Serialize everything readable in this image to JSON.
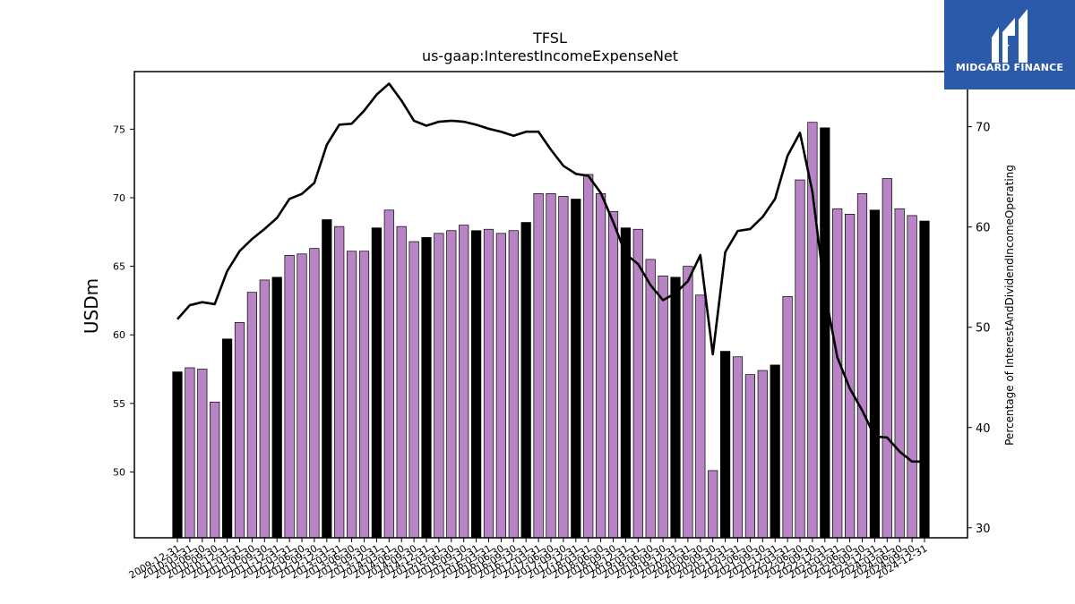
{
  "chart_data": {
    "type": "bar",
    "title": "TFSL",
    "subtitle": "us-gaap:InterestIncomeExpenseNet",
    "ylabel": "USDm",
    "y2label": "Percentage of InterestAndDividendIncomeOperating",
    "ylim": [
      45.2,
      79.2
    ],
    "y2lim": [
      29,
      75.5
    ],
    "yticks": [
      50,
      55,
      60,
      65,
      70,
      75
    ],
    "y2ticks": [
      30,
      40,
      50,
      60,
      70
    ],
    "x": [
      "2009-12-31",
      "2010-03-31",
      "2010-06-30",
      "2010-09-30",
      "2010-12-31",
      "2011-03-31",
      "2011-06-30",
      "2011-09-30",
      "2011-12-31",
      "2012-03-31",
      "2012-06-30",
      "2012-09-30",
      "2012-12-31",
      "2013-03-31",
      "2013-06-30",
      "2013-09-30",
      "2013-12-31",
      "2014-03-31",
      "2014-06-30",
      "2014-09-30",
      "2014-12-31",
      "2015-03-31",
      "2015-06-30",
      "2015-09-30",
      "2015-12-31",
      "2016-03-31",
      "2016-06-30",
      "2016-09-30",
      "2016-12-31",
      "2017-03-31",
      "2017-06-30",
      "2017-09-30",
      "2017-12-31",
      "2018-03-31",
      "2018-06-30",
      "2018-09-30",
      "2018-12-31",
      "2019-03-31",
      "2019-06-30",
      "2019-09-30",
      "2019-12-31",
      "2020-03-31",
      "2020-06-30",
      "2020-09-30",
      "2020-12-31",
      "2021-03-31",
      "2021-06-30",
      "2021-09-30",
      "2021-12-31",
      "2022-03-31",
      "2022-06-30",
      "2022-09-30",
      "2022-12-31",
      "2023-03-31",
      "2023-06-30",
      "2023-09-30",
      "2023-12-31",
      "2024-03-31",
      "2024-06-30",
      "2024-09-30",
      "2024-12-31"
    ],
    "series": [
      {
        "kind": "bar",
        "values": [
          57.3,
          57.6,
          57.5,
          55.1,
          59.7,
          60.9,
          63.1,
          64.0,
          64.2,
          65.8,
          65.9,
          66.3,
          68.4,
          67.9,
          66.1,
          66.1,
          67.8,
          69.1,
          67.9,
          66.8,
          67.1,
          67.4,
          67.6,
          68.0,
          67.6,
          67.7,
          67.4,
          67.6,
          68.2,
          70.3,
          70.3,
          70.1,
          69.9,
          71.7,
          70.3,
          69.0,
          67.8,
          67.7,
          65.5,
          64.3,
          64.2,
          65.0,
          62.9,
          50.1,
          58.8,
          58.4,
          57.1,
          57.4,
          57.8,
          62.8,
          71.3,
          75.5,
          75.1,
          69.2,
          68.8,
          70.3,
          69.1,
          71.4,
          69.2,
          68.7,
          68.3
        ],
        "colors": [
          "#000000",
          "#b884c5"
        ],
        "pattern": "black on quarter ending 12-31, purple otherwise"
      },
      {
        "kind": "line",
        "axis": "right",
        "color": "#000000",
        "values": [
          50.8,
          52.2,
          52.5,
          52.3,
          55.6,
          57.6,
          58.8,
          59.8,
          60.9,
          62.8,
          63.3,
          64.4,
          68.2,
          70.2,
          70.3,
          71.6,
          73.2,
          74.3,
          72.6,
          70.6,
          70.1,
          70.5,
          70.6,
          70.5,
          70.2,
          69.8,
          69.5,
          69.1,
          69.5,
          69.5,
          67.7,
          66.1,
          65.3,
          65.1,
          63.4,
          60.5,
          57.3,
          56.3,
          54.2,
          52.7,
          53.4,
          54.6,
          57.2,
          47.3,
          57.5,
          59.6,
          59.8,
          61.0,
          62.8,
          67.1,
          69.4,
          63.5,
          53.5,
          47.0,
          43.9,
          41.7,
          39.1,
          39.0,
          37.6,
          36.6,
          36.6
        ]
      }
    ],
    "xtick_labels": [
      "2009-12-31",
      "2010-03-31",
      "2010-06-30",
      "2010-09-30",
      "2010-12-31",
      "2011-03-31",
      "2011-06-30",
      "2011-09-30",
      "2011-12-31",
      "2012-03-31",
      "2012-06-30",
      "2012-09-30",
      "2012-12-31",
      "2013-03-31",
      "2013-06-30",
      "2013-09-30",
      "2013-12-31",
      "2014-03-31",
      "2014-06-30",
      "2014-09-30",
      "2014-12-31",
      "2015-03-31",
      "2015-06-30",
      "2015-09-30",
      "2015-12-31",
      "2016-03-31",
      "2016-06-30",
      "2016-09-30",
      "2016-12-31",
      "2017-03-31",
      "2017-06-30",
      "2017-09-30",
      "2017-12-31",
      "2018-03-31",
      "2018-06-30",
      "2018-09-30",
      "2018-12-31",
      "2019-03-31",
      "2019-06-30",
      "2019-09-30",
      "2019-12-31",
      "2020-03-31",
      "2020-06-30",
      "2020-09-30",
      "2020-12-31",
      "2021-03-31",
      "2021-06-30",
      "2021-09-30",
      "2021-12-31",
      "2022-03-31",
      "2022-06-30",
      "2022-09-30",
      "2022-12-31",
      "2023-03-31",
      "2023-06-30",
      "2023-09-30",
      "2023-12-31",
      "2024-03-31",
      "2024-06-30",
      "2024-09-30",
      "2024-12-31"
    ]
  },
  "logo": {
    "text": "MIDGARD FINANCE",
    "background": "#2b5aab"
  }
}
